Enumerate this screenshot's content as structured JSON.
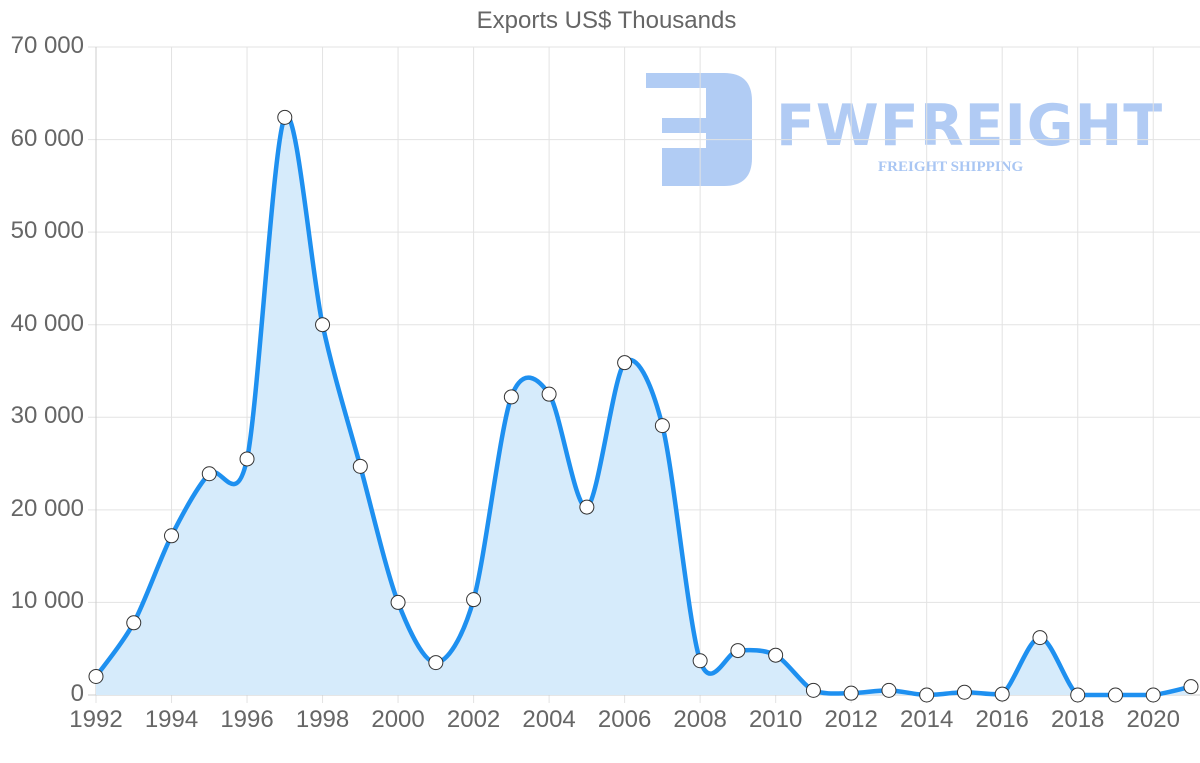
{
  "chart_data": {
    "type": "line",
    "title": "Exports US$ Thousands",
    "xlabel": "",
    "ylabel": "",
    "x": [
      1992,
      1993,
      1994,
      1995,
      1996,
      1997,
      1998,
      1999,
      2000,
      2001,
      2002,
      2003,
      2004,
      2005,
      2006,
      2007,
      2008,
      2009,
      2010,
      2011,
      2012,
      2013,
      2014,
      2015,
      2016,
      2017,
      2018,
      2019,
      2020,
      2021
    ],
    "series": [
      {
        "name": "Exports US$ Thousands",
        "values": [
          2000,
          7800,
          17200,
          23900,
          25500,
          62400,
          40000,
          24700,
          10000,
          3500,
          10300,
          32200,
          32500,
          20300,
          35900,
          29100,
          3700,
          4800,
          4300,
          500,
          200,
          500,
          0,
          300,
          100,
          6200,
          0,
          0,
          0,
          900
        ],
        "color": "#1E90F0",
        "fill": "#D6EBFB"
      }
    ],
    "ylim": [
      0,
      70000
    ],
    "yticks": [
      0,
      10000,
      20000,
      30000,
      40000,
      50000,
      60000,
      70000
    ],
    "ytick_labels": [
      "0",
      "10 000",
      "20 000",
      "30 000",
      "40 000",
      "50 000",
      "60 000",
      "70 000"
    ],
    "xticks": [
      1992,
      1994,
      1996,
      1998,
      2000,
      2002,
      2004,
      2006,
      2008,
      2010,
      2012,
      2014,
      2016,
      2018,
      2020
    ],
    "xtick_labels": [
      "1992",
      "1994",
      "1996",
      "1998",
      "2000",
      "2002",
      "2004",
      "2006",
      "2008",
      "2010",
      "2012",
      "2014",
      "2016",
      "2018",
      "2020"
    ],
    "grid": true,
    "legend": "none"
  },
  "watermark": {
    "brand": "FWFREIGHT",
    "tagline": "FREIGHT SHIPPING",
    "color": "#A9C6F3"
  }
}
